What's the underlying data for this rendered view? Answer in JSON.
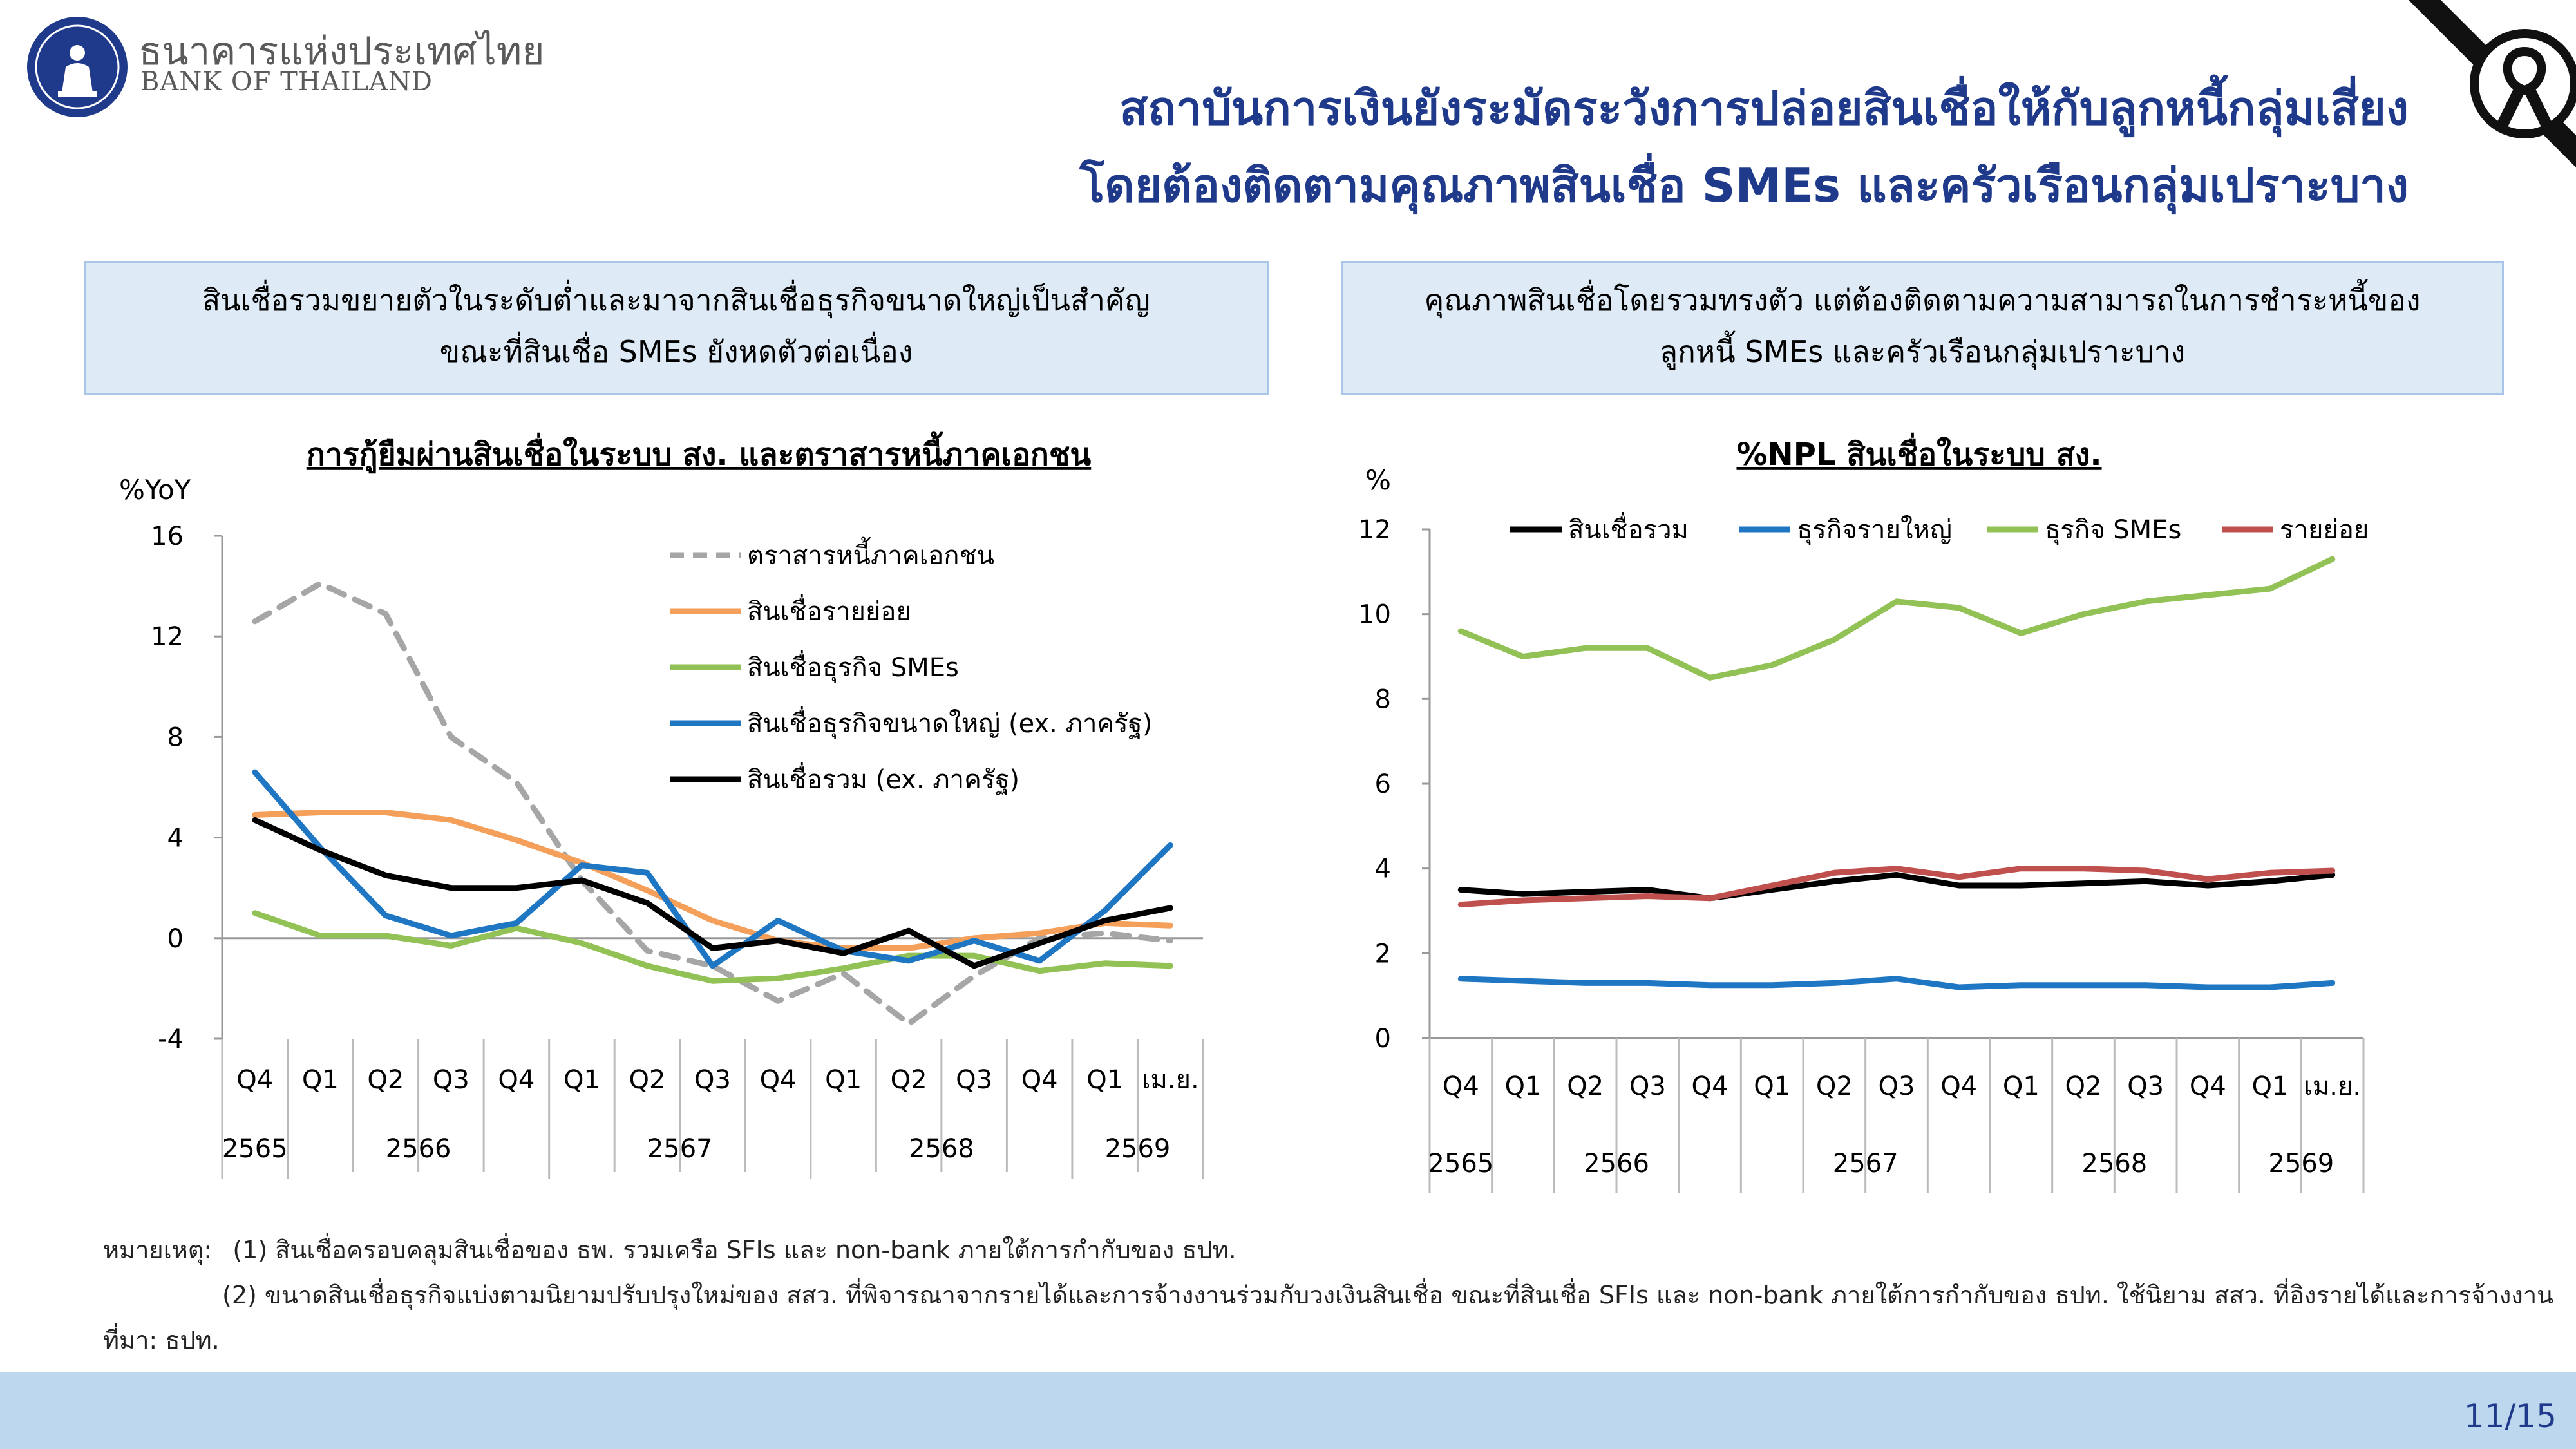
{
  "header": {
    "bank_name_th": "ธนาคารแห่งประเทศไทย",
    "bank_name_en": "BANK OF THAILAND",
    "title_line1": "สถาบันการเงินยังระมัดระวังการปล่อยสินเชื่อให้กับลูกหนี้กลุ่มเสี่ยง",
    "title_line2": "โดยต้องติดตามคุณภาพสินเชื่อ SMEs และครัวเรือนกลุ่มเปราะบาง",
    "logo_icon": "bank-of-thailand-emblem",
    "ribbon_icon": "black-mourning-ribbon"
  },
  "left_panel": {
    "box_line1": "สินเชื่อรวมขยายตัวในระดับต่ำและมาจากสินเชื่อธุรกิจขนาดใหญ่เป็นสำคัญ",
    "box_line2": "ขณะที่สินเชื่อ SMEs ยังหดตัวต่อเนื่อง"
  },
  "right_panel": {
    "box_line1": "คุณภาพสินเชื่อโดยรวมทรงตัว แต่ต้องติดตามความสามารถในการชำระหนี้ของ",
    "box_line2": "ลูกหนี้ SMEs และครัวเรือนกลุ่มเปราะบาง"
  },
  "chart_data": [
    {
      "type": "line",
      "title": "การกู้ยืมผ่านสินเชื่อในระบบ สง. และตราสารหนี้ภาคเอกชน",
      "ylabel": "%YoY",
      "ylim": [
        -4,
        16
      ],
      "yticks": [
        -4,
        0,
        4,
        8,
        12,
        16
      ],
      "categories": [
        "Q4",
        "Q1",
        "Q2",
        "Q3",
        "Q4",
        "Q1",
        "Q2",
        "Q3",
        "Q4",
        "Q1",
        "Q2",
        "Q3",
        "Q4",
        "Q1",
        "เม.ย."
      ],
      "year_groups": [
        {
          "label": "2565",
          "span": 1
        },
        {
          "label": "2566",
          "span": 4
        },
        {
          "label": "2567",
          "span": 4
        },
        {
          "label": "2568",
          "span": 4
        },
        {
          "label": "2569",
          "span": 2
        }
      ],
      "legend_position": "top-right",
      "series": [
        {
          "name": "ตราสารหนี้ภาคเอกชน",
          "color": "#a6a6a6",
          "dashed": true,
          "values": [
            12.6,
            14.1,
            12.9,
            8.0,
            6.2,
            2.3,
            -0.5,
            -1.1,
            -2.5,
            -1.4,
            -3.4,
            -1.5,
            0.0,
            0.2,
            -0.1
          ]
        },
        {
          "name": "สินเชื่อรายย่อย",
          "color": "#f4a05a",
          "dashed": false,
          "values": [
            4.9,
            5.0,
            5.0,
            4.7,
            3.9,
            3.0,
            1.9,
            0.7,
            -0.1,
            -0.4,
            -0.4,
            0.0,
            0.2,
            0.6,
            0.5
          ]
        },
        {
          "name": "สินเชื่อธุรกิจ SMEs",
          "color": "#92c155",
          "dashed": false,
          "values": [
            1.0,
            0.1,
            0.1,
            -0.3,
            0.4,
            -0.2,
            -1.1,
            -1.7,
            -1.6,
            -1.2,
            -0.7,
            -0.7,
            -1.3,
            -1.0,
            -1.1
          ]
        },
        {
          "name": "สินเชื่อธุรกิจขนาดใหญ่ (ex. ภาครัฐ)",
          "color": "#1f77c4",
          "dashed": false,
          "values": [
            6.6,
            3.6,
            0.9,
            0.1,
            0.6,
            2.9,
            2.6,
            -1.1,
            0.7,
            -0.5,
            -0.9,
            -0.1,
            -0.9,
            1.1,
            3.7
          ]
        },
        {
          "name": "สินเชื่อรวม (ex. ภาครัฐ)",
          "color": "#000000",
          "dashed": false,
          "values": [
            4.7,
            3.5,
            2.5,
            2.0,
            2.0,
            2.3,
            1.4,
            -0.4,
            -0.1,
            -0.6,
            0.3,
            -1.1,
            -0.2,
            0.7,
            1.2
          ]
        }
      ]
    },
    {
      "type": "line",
      "title": "%NPL สินเชื่อในระบบ สง.",
      "ylabel": "%",
      "ylim": [
        0,
        12
      ],
      "yticks": [
        0,
        2,
        4,
        6,
        8,
        10,
        12
      ],
      "categories": [
        "Q4",
        "Q1",
        "Q2",
        "Q3",
        "Q4",
        "Q1",
        "Q2",
        "Q3",
        "Q4",
        "Q1",
        "Q2",
        "Q3",
        "Q4",
        "Q1",
        "เม.ย."
      ],
      "year_groups": [
        {
          "label": "2565",
          "span": 1
        },
        {
          "label": "2566",
          "span": 4
        },
        {
          "label": "2567",
          "span": 4
        },
        {
          "label": "2568",
          "span": 4
        },
        {
          "label": "2569",
          "span": 2
        }
      ],
      "legend_position": "top",
      "series": [
        {
          "name": "สินเชื่อรวม",
          "color": "#000000",
          "values": [
            3.5,
            3.4,
            3.45,
            3.5,
            3.3,
            3.5,
            3.7,
            3.85,
            3.6,
            3.6,
            3.65,
            3.7,
            3.6,
            3.7,
            3.85
          ]
        },
        {
          "name": "ธุรกิจรายใหญ่",
          "color": "#1f77c4",
          "values": [
            1.4,
            1.35,
            1.3,
            1.3,
            1.25,
            1.25,
            1.3,
            1.4,
            1.2,
            1.25,
            1.25,
            1.25,
            1.2,
            1.2,
            1.3
          ]
        },
        {
          "name": "ธุรกิจ SMEs",
          "color": "#92c155",
          "values": [
            9.6,
            9.0,
            9.2,
            9.2,
            8.5,
            8.8,
            9.4,
            10.3,
            10.15,
            9.55,
            10.0,
            10.3,
            10.45,
            10.6,
            11.3
          ]
        },
        {
          "name": "รายย่อย",
          "color": "#c0504d",
          "values": [
            3.15,
            3.25,
            3.3,
            3.35,
            3.3,
            3.6,
            3.9,
            4.0,
            3.8,
            4.0,
            4.0,
            3.95,
            3.75,
            3.9,
            3.95
          ]
        }
      ]
    }
  ],
  "notes": {
    "prefix": "หมายเหตุ:",
    "note1": "(1) สินเชื่อครอบคลุมสินเชื่อของ ธพ. รวมเครือ SFIs และ non-bank ภายใต้การกำกับของ ธปท.",
    "note2": "(2) ขนาดสินเชื่อธุรกิจแบ่งตามนิยามปรับปรุงใหม่ของ สสว. ที่พิจารณาจากรายได้และการจ้างงานร่วมกับวงเงินสินเชื่อ ขณะที่สินเชื่อ SFIs และ non-bank ภายใต้การกำกับของ ธปท. ใช้นิยาม สสว. ที่อิงรายได้และการจ้างงาน",
    "source": "ที่มา: ธปท."
  },
  "footer": {
    "page_number": "11/15"
  }
}
